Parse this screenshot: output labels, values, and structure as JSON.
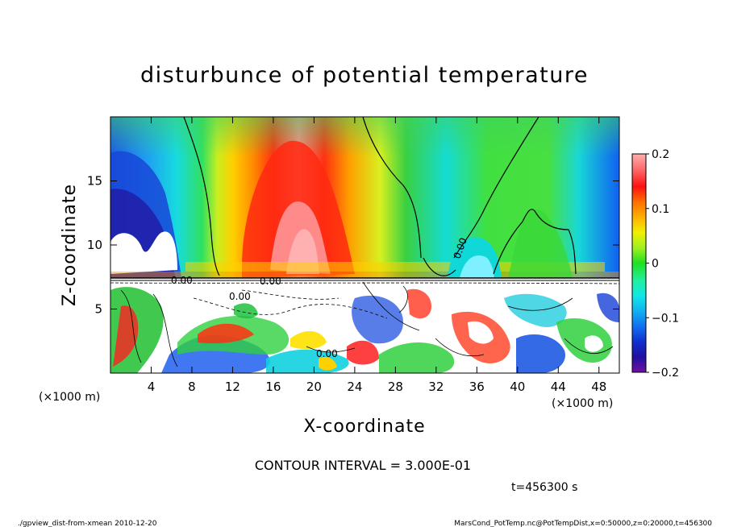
{
  "chart_data": {
    "type": "heatmap",
    "title": "disturbunce of potential temperature",
    "xlabel": "X-coordinate",
    "ylabel": "Z-coordinate",
    "x_unit_label": "(×1000 m)",
    "z_unit_label": "(×1000 m)",
    "xlim": [
      0,
      50
    ],
    "ylim": [
      0,
      20
    ],
    "x_ticks": [
      "4",
      "8",
      "12",
      "16",
      "20",
      "24",
      "28",
      "32",
      "36",
      "40",
      "44",
      "48"
    ],
    "x_tick_values": [
      4,
      8,
      12,
      16,
      20,
      24,
      28,
      32,
      36,
      40,
      44,
      48
    ],
    "y_ticks": [
      "5",
      "10",
      "15"
    ],
    "y_tick_values": [
      5,
      10,
      15
    ],
    "colorbar": {
      "ticks": [
        "0.2",
        "0.1",
        "0",
        "−0.1",
        "−0.2"
      ],
      "tick_values": [
        0.2,
        0.1,
        0,
        -0.1,
        -0.2
      ],
      "range": [
        -0.2,
        0.2
      ]
    },
    "contour_labels": [
      "0.00",
      "0.00",
      "0.00",
      "0.00",
      "0.00"
    ],
    "contour_interval_text": "CONTOUR INTERVAL = 3.000E-01",
    "time_text": "t=456300 s",
    "footer_left": "./gpview_dist-from-xmean   2010-12-20",
    "footer_right": "MarsCond_PotTemp.nc@PotTempDist,x=0:50000,z=0:20000,t=456300"
  }
}
